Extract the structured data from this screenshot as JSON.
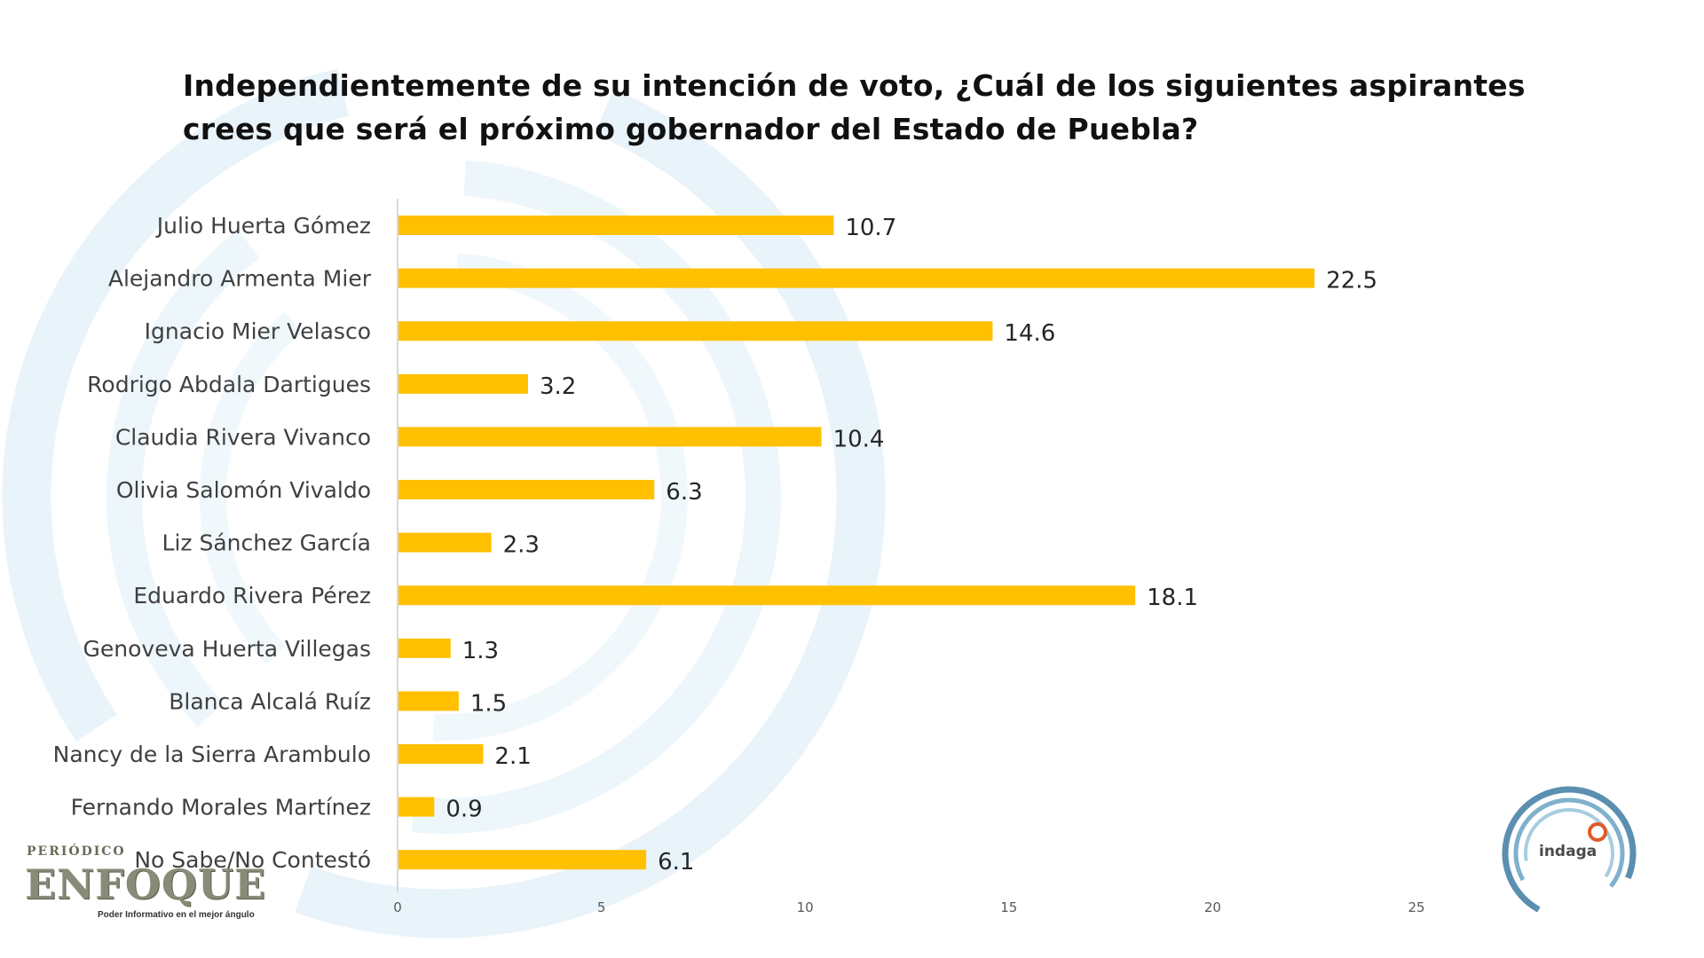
{
  "title": "Independientemente de su intención de voto,  ¿Cuál de los siguientes aspirantes crees que será el próximo gobernador del Estado de Puebla?",
  "colors": {
    "bar": "#FFC000",
    "axis": "#D9D9D9",
    "deco": "#E3F0F8"
  },
  "chart_data": {
    "type": "bar",
    "orientation": "horizontal",
    "title": "Independientemente de su intención de voto,  ¿Cuál de los siguientes aspirantes crees que será el próximo gobernador del Estado de Puebla?",
    "categories": [
      "Julio Huerta Gómez",
      "Alejandro Armenta Mier",
      "Ignacio Mier Velasco",
      "Rodrigo Abdala Dartigues",
      "Claudia Rivera Vivanco",
      "Olivia Salomón Vivaldo",
      "Liz Sánchez García",
      "Eduardo Rivera Pérez",
      "Genoveva Huerta Villegas",
      "Blanca Alcalá Ruíz",
      "Nancy de la Sierra Arambulo",
      "Fernando Morales Martínez",
      "No Sabe/No Contestó"
    ],
    "values": [
      10.7,
      22.5,
      14.6,
      3.2,
      10.4,
      6.3,
      2.3,
      18.1,
      1.3,
      1.5,
      2.1,
      0.9,
      6.1
    ],
    "value_labels": [
      "10.7",
      "22.5",
      "14.6",
      "3.2",
      "10.4",
      "6.3",
      "2.3",
      "18.1",
      "1.3",
      "1.5",
      "2.1",
      "0.9",
      "6.1"
    ],
    "xticks": [
      0,
      5,
      10,
      15,
      20,
      25
    ],
    "xtick_labels": [
      "0",
      "5",
      "10",
      "15",
      "20",
      "25"
    ],
    "xlim": [
      0,
      25
    ],
    "xlabel": "",
    "ylabel": "",
    "grid": false
  },
  "logos": {
    "enfoque_periodico": "PERIÓDICO",
    "enfoque_brand": "ENFOQUE",
    "enfoque_tagline": "Poder Informativo en el mejor ángulo",
    "indaga": "indaga"
  }
}
